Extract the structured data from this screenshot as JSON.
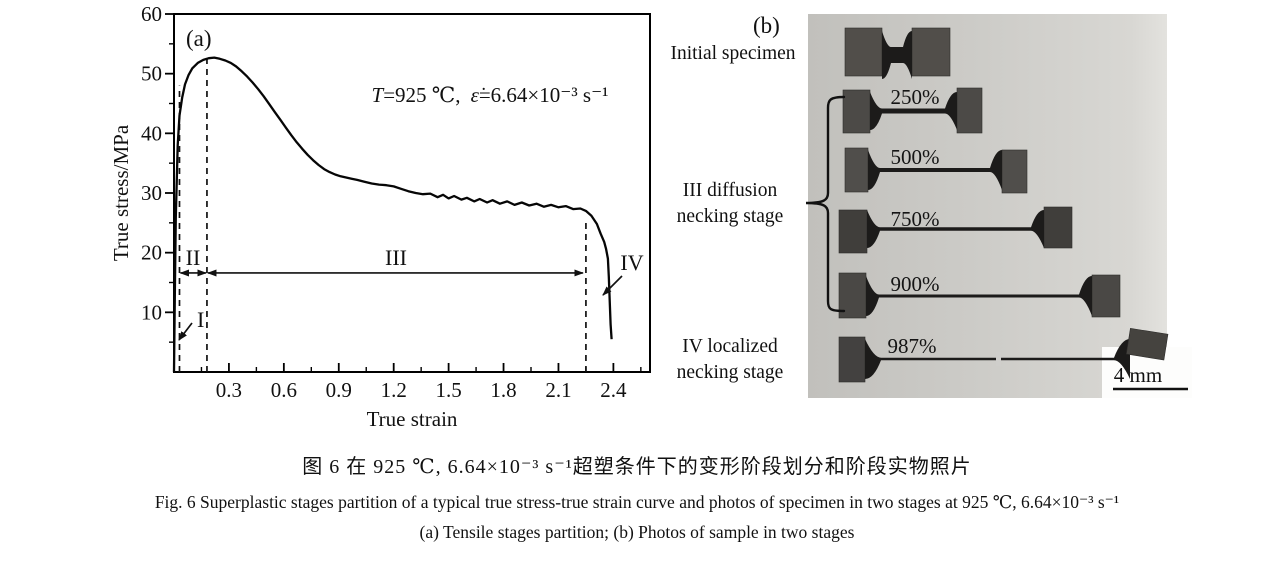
{
  "figure": {
    "caption_zh": "图 6  在 925 ℃, 6.64×10⁻³ s⁻¹超塑条件下的变形阶段划分和阶段实物照片",
    "caption_en": "Fig. 6  Superplastic stages partition of a typical true stress-true strain curve and photos of specimen in two stages at 925 ℃, 6.64×10⁻³ s⁻¹",
    "caption_sub": "(a) Tensile stages partition; (b) Photos of sample in two stages"
  },
  "panel_a": {
    "label": "(a)",
    "annotation_parts": {
      "t_sym": "T",
      "t_rest": "=925 ℃,",
      "rate_sym": "ε̇",
      "rate_rest": "=6.64×10⁻³ s⁻¹"
    }
  },
  "chart_data": {
    "type": "line",
    "title": "",
    "xlabel": "True strain",
    "ylabel": "True stress/MPa",
    "xlim": [
      0,
      2.6
    ],
    "ylim": [
      0,
      60
    ],
    "x_ticks": [
      0.3,
      0.6,
      0.9,
      1.2,
      1.5,
      1.8,
      2.1,
      2.4
    ],
    "y_ticks": [
      10,
      20,
      30,
      40,
      50,
      60
    ],
    "grid": false,
    "legend": false,
    "annotation": "T=925 ℃, ε̇=6.64×10⁻³ s⁻¹",
    "condition": {
      "temperature": "925 ℃",
      "strain_rate": "6.64×10⁻³ s⁻¹"
    },
    "stage_labels": [
      "I",
      "II",
      "III",
      "IV"
    ],
    "stage_boundaries_strain": [
      0.03,
      0.18,
      2.25
    ],
    "peak_stress_MPa": 52.7,
    "fracture_strain": 2.39,
    "series": [
      {
        "name": "true stress-true strain curve",
        "points": [
          [
            0,
            0
          ],
          [
            0.005,
            14
          ],
          [
            0.01,
            26
          ],
          [
            0.02,
            38
          ],
          [
            0.03,
            43
          ],
          [
            0.045,
            46
          ],
          [
            0.06,
            48.2
          ],
          [
            0.08,
            49.8
          ],
          [
            0.1,
            50.9
          ],
          [
            0.13,
            51.8
          ],
          [
            0.16,
            52.3
          ],
          [
            0.19,
            52.6
          ],
          [
            0.22,
            52.7
          ],
          [
            0.25,
            52.5
          ],
          [
            0.28,
            52.2
          ],
          [
            0.31,
            51.8
          ],
          [
            0.34,
            51.2
          ],
          [
            0.37,
            50.4
          ],
          [
            0.4,
            49.5
          ],
          [
            0.43,
            48.5
          ],
          [
            0.46,
            47.4
          ],
          [
            0.49,
            46.2
          ],
          [
            0.52,
            44.9
          ],
          [
            0.55,
            43.6
          ],
          [
            0.58,
            42.3
          ],
          [
            0.61,
            41.0
          ],
          [
            0.64,
            39.7
          ],
          [
            0.67,
            38.5
          ],
          [
            0.7,
            37.4
          ],
          [
            0.73,
            36.4
          ],
          [
            0.76,
            35.5
          ],
          [
            0.79,
            34.7
          ],
          [
            0.82,
            34.0
          ],
          [
            0.85,
            33.5
          ],
          [
            0.88,
            33.1
          ],
          [
            0.91,
            32.8
          ],
          [
            0.94,
            32.6
          ],
          [
            0.97,
            32.4
          ],
          [
            1.0,
            32.2
          ],
          [
            1.04,
            31.9
          ],
          [
            1.08,
            31.6
          ],
          [
            1.12,
            31.4
          ],
          [
            1.16,
            31.3
          ],
          [
            1.2,
            31.1
          ],
          [
            1.24,
            30.7
          ],
          [
            1.28,
            30.3
          ],
          [
            1.32,
            30.0
          ],
          [
            1.36,
            29.8
          ],
          [
            1.4,
            29.9
          ],
          [
            1.44,
            29.3
          ],
          [
            1.47,
            29.7
          ],
          [
            1.5,
            29.1
          ],
          [
            1.53,
            29.5
          ],
          [
            1.57,
            28.9
          ],
          [
            1.6,
            29.2
          ],
          [
            1.64,
            28.6
          ],
          [
            1.67,
            29.0
          ],
          [
            1.71,
            28.4
          ],
          [
            1.74,
            28.8
          ],
          [
            1.78,
            28.2
          ],
          [
            1.82,
            28.6
          ],
          [
            1.86,
            28.0
          ],
          [
            1.9,
            28.4
          ],
          [
            1.94,
            27.9
          ],
          [
            1.98,
            28.2
          ],
          [
            2.02,
            27.7
          ],
          [
            2.06,
            28.0
          ],
          [
            2.1,
            27.6
          ],
          [
            2.14,
            27.8
          ],
          [
            2.18,
            27.3
          ],
          [
            2.22,
            27.4
          ],
          [
            2.25,
            27.0
          ],
          [
            2.28,
            26.2
          ],
          [
            2.31,
            24.8
          ],
          [
            2.33,
            23.2
          ],
          [
            2.35,
            21.8
          ],
          [
            2.36,
            20.6
          ],
          [
            2.37,
            19.0
          ],
          [
            2.375,
            16.0
          ],
          [
            2.38,
            12.0
          ],
          [
            2.385,
            8.0
          ],
          [
            2.39,
            5.5
          ]
        ]
      }
    ]
  },
  "panel_b": {
    "label": "(b)",
    "row_labels": {
      "initial": "Initial specimen",
      "stage3_line1": "III diffusion",
      "stage3_line2": "necking stage",
      "stage4_line1": "IV localized",
      "stage4_line2": "necking stage"
    },
    "specimens": [
      {
        "name": "initial specimen",
        "label": ""
      },
      {
        "name": "elongation 250%",
        "label": "250%"
      },
      {
        "name": "elongation 500%",
        "label": "500%"
      },
      {
        "name": "elongation 750%",
        "label": "750%"
      },
      {
        "name": "elongation 900%",
        "label": "900%"
      },
      {
        "name": "elongation 987% (fractured)",
        "label": "987%"
      }
    ],
    "scale_bar": "4 mm"
  }
}
